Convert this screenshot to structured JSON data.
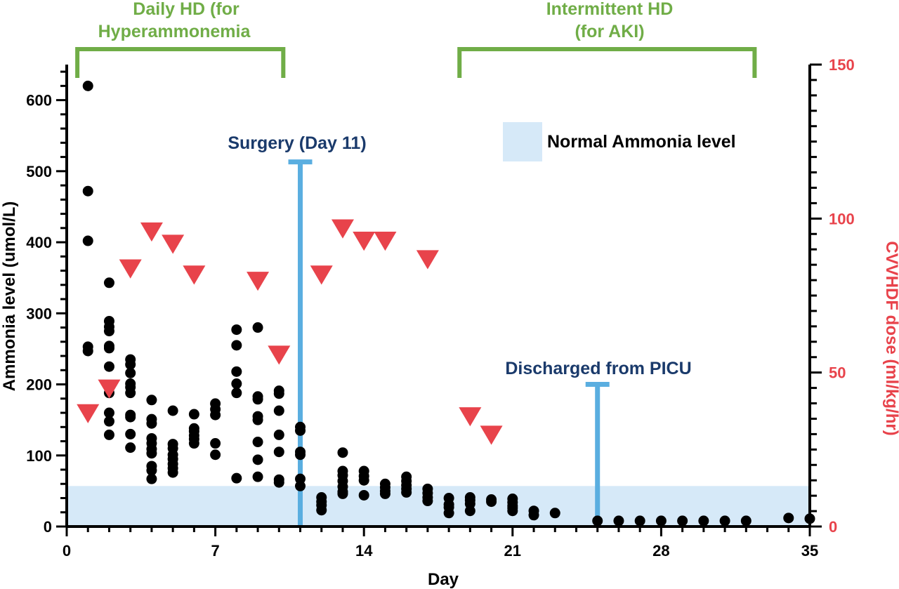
{
  "chart_data": {
    "type": "scatter",
    "xlabel": "Day",
    "ylabel_left": "Ammonia level (umol/L)",
    "ylabel_right": "CVVHDF dose (ml/kg/hr)",
    "x_ticks": [
      "0",
      "7",
      "14",
      "21",
      "28",
      "35"
    ],
    "y_left_ticks": [
      "0",
      "100",
      "200",
      "300",
      "400",
      "500",
      "600"
    ],
    "y_right_ticks": [
      "0",
      "50",
      "100",
      "150"
    ],
    "xlim": [
      0,
      35
    ],
    "ylim_left": [
      0,
      650
    ],
    "ylim_right": [
      0,
      150
    ],
    "normal_band": {
      "label": "Normal Ammonia level",
      "y_range": [
        0,
        57
      ],
      "color": "#d6e9f8"
    },
    "periods": [
      {
        "label_line1": "Daily HD (for",
        "label_line2": "Hyperammonemia",
        "x_start": 0.5,
        "x_end": 10.2,
        "color": "#70ad47"
      },
      {
        "label_line1": "Intermittent HD",
        "label_line2": "(for AKI)",
        "x_start": 18.5,
        "x_end": 32.4,
        "color": "#70ad47"
      }
    ],
    "events": [
      {
        "label": "Surgery (Day 11)",
        "x": 11,
        "y_top": 513,
        "color": "#5aaee0"
      },
      {
        "label": "Discharged from PICU",
        "x": 25,
        "y_top": 200,
        "color": "#5aaee0"
      }
    ],
    "series": [
      {
        "type": "scatter",
        "axis": "left",
        "color": "#000000",
        "points": [
          [
            1,
            620
          ],
          [
            1,
            472
          ],
          [
            1,
            402
          ],
          [
            1,
            253
          ],
          [
            1,
            247
          ],
          [
            2,
            343
          ],
          [
            2,
            289
          ],
          [
            2,
            281
          ],
          [
            2,
            275
          ],
          [
            2,
            254
          ],
          [
            2,
            251
          ],
          [
            2,
            225
          ],
          [
            2,
            188
          ],
          [
            2,
            160
          ],
          [
            2,
            148
          ],
          [
            2,
            129
          ],
          [
            3,
            235
          ],
          [
            3,
            228
          ],
          [
            3,
            216
          ],
          [
            3,
            201
          ],
          [
            3,
            196
          ],
          [
            3,
            188
          ],
          [
            3,
            157
          ],
          [
            3,
            154
          ],
          [
            3,
            130
          ],
          [
            3,
            111
          ],
          [
            4,
            178
          ],
          [
            4,
            151
          ],
          [
            4,
            145
          ],
          [
            4,
            124
          ],
          [
            4,
            117
          ],
          [
            4,
            109
          ],
          [
            4,
            103
          ],
          [
            4,
            85
          ],
          [
            4,
            79
          ],
          [
            4,
            67
          ],
          [
            5,
            163
          ],
          [
            5,
            116
          ],
          [
            5,
            110
          ],
          [
            5,
            101
          ],
          [
            5,
            95
          ],
          [
            5,
            88
          ],
          [
            5,
            82
          ],
          [
            5,
            76
          ],
          [
            6,
            158
          ],
          [
            6,
            138
          ],
          [
            6,
            134
          ],
          [
            6,
            128
          ],
          [
            6,
            123
          ],
          [
            6,
            117
          ],
          [
            7,
            173
          ],
          [
            7,
            165
          ],
          [
            7,
            157
          ],
          [
            7,
            117
          ],
          [
            7,
            101
          ],
          [
            8,
            277
          ],
          [
            8,
            255
          ],
          [
            8,
            218
          ],
          [
            8,
            201
          ],
          [
            8,
            188
          ],
          [
            8,
            68
          ],
          [
            9,
            280
          ],
          [
            9,
            183
          ],
          [
            9,
            179
          ],
          [
            9,
            155
          ],
          [
            9,
            150
          ],
          [
            9,
            119
          ],
          [
            9,
            94
          ],
          [
            9,
            70
          ],
          [
            10,
            191
          ],
          [
            10,
            187
          ],
          [
            10,
            163
          ],
          [
            10,
            129
          ],
          [
            10,
            105
          ],
          [
            10,
            66
          ],
          [
            10,
            62
          ],
          [
            11,
            140
          ],
          [
            11,
            135
          ],
          [
            11,
            105
          ],
          [
            11,
            101
          ],
          [
            11,
            67
          ],
          [
            11,
            57
          ],
          [
            12,
            41
          ],
          [
            12,
            35
          ],
          [
            12,
            30
          ],
          [
            12,
            23
          ],
          [
            13,
            104
          ],
          [
            13,
            78
          ],
          [
            13,
            72
          ],
          [
            13,
            64
          ],
          [
            13,
            56
          ],
          [
            13,
            49
          ],
          [
            13,
            46
          ],
          [
            14,
            78
          ],
          [
            14,
            71
          ],
          [
            14,
            65
          ],
          [
            14,
            44
          ],
          [
            15,
            60
          ],
          [
            15,
            55
          ],
          [
            15,
            50
          ],
          [
            15,
            46
          ],
          [
            16,
            70
          ],
          [
            16,
            64
          ],
          [
            16,
            58
          ],
          [
            16,
            53
          ],
          [
            16,
            48
          ],
          [
            17,
            53
          ],
          [
            17,
            47
          ],
          [
            17,
            41
          ],
          [
            17,
            36
          ],
          [
            18,
            40
          ],
          [
            18,
            31
          ],
          [
            18,
            27
          ],
          [
            18,
            19
          ],
          [
            19,
            41
          ],
          [
            19,
            37
          ],
          [
            19,
            32
          ],
          [
            19,
            22
          ],
          [
            20,
            38
          ],
          [
            20,
            35
          ],
          [
            21,
            39
          ],
          [
            21,
            34
          ],
          [
            21,
            29
          ],
          [
            21,
            26
          ],
          [
            21,
            22
          ],
          [
            22,
            22
          ],
          [
            22,
            16
          ],
          [
            23,
            19
          ],
          [
            25,
            8
          ],
          [
            26,
            8
          ],
          [
            27,
            8
          ],
          [
            28,
            8
          ],
          [
            29,
            8
          ],
          [
            30,
            8
          ],
          [
            31,
            8
          ],
          [
            32,
            8
          ],
          [
            34,
            12
          ],
          [
            35,
            11
          ]
        ]
      },
      {
        "type": "scatter",
        "axis": "right",
        "marker": "triangle-down",
        "color": "#e8434b",
        "points": [
          [
            1,
            37
          ],
          [
            2,
            45
          ],
          [
            3,
            84
          ],
          [
            4,
            96
          ],
          [
            5,
            92
          ],
          [
            6,
            82
          ],
          [
            9,
            80
          ],
          [
            10,
            56
          ],
          [
            12,
            82
          ],
          [
            13,
            97
          ],
          [
            14,
            93
          ],
          [
            15,
            93
          ],
          [
            17,
            87
          ],
          [
            19,
            36
          ],
          [
            20,
            30
          ]
        ]
      }
    ]
  }
}
